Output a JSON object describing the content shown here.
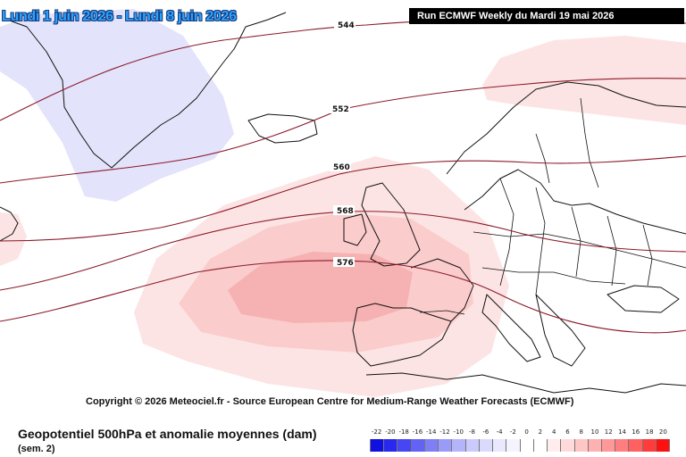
{
  "header": {
    "date_range": "Lundi 1 juin 2026 - Lundi 8 juin 2026",
    "run_label": "Run ECMWF Weekly du Mardi 19 mai 2026"
  },
  "copyright": "Copyright © 2026 Meteociel.fr - Source European Centre for Medium-Range Weather Forecasts (ECMWF)",
  "footer": {
    "title": "Geopotentiel 500hPa et anomalie moyennes (dam)",
    "subtitle": "(sem. 2)"
  },
  "contours": {
    "labels": [
      "544",
      "552",
      "560",
      "568",
      "576"
    ]
  },
  "legend": {
    "labels": [
      "-22",
      "-20",
      "-18",
      "-16",
      "-14",
      "-12",
      "-10",
      "-8",
      "-6",
      "-4",
      "-2",
      "0",
      "2",
      "4",
      "6",
      "8",
      "10",
      "12",
      "14",
      "16",
      "18",
      "20"
    ],
    "colors": [
      "#1010e0",
      "#2828ee",
      "#4646f2",
      "#6262f4",
      "#7e7ef6",
      "#9a9af8",
      "#b4b4fa",
      "#cacafc",
      "#dadafd",
      "#e8e8fe",
      "#f4f4ff",
      "#ffffff",
      "#ffffff",
      "#ffecec",
      "#ffdada",
      "#ffc6c6",
      "#ffb0b0",
      "#ff9898",
      "#ff7e7e",
      "#ff6060",
      "#ff3c3c",
      "#ff1010"
    ]
  },
  "anomaly_colors": {
    "negative_light": "#e3e3fb",
    "positive_1": "#fde4e4",
    "positive_2": "#fbcccc",
    "positive_3": "#f6b2b2"
  }
}
